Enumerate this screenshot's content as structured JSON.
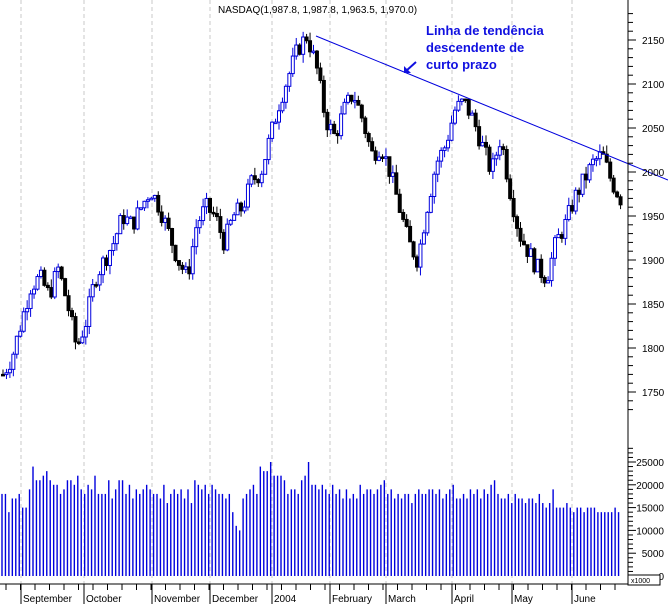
{
  "chart_data": [
    {
      "type": "candlestick",
      "title": "NASDAQ(1,987.8, 1,987.8, 1,963.5, 1,970.0)",
      "last_ohlc": {
        "open": 1987.8,
        "high": 1987.8,
        "low": 1963.5,
        "close": 1970.0
      },
      "xlabel": "",
      "ylabel": "",
      "ylim": [
        1720,
        2180
      ],
      "y_ticks": [
        1750,
        1800,
        1850,
        1900,
        1950,
        2000,
        2050,
        2100,
        2150
      ],
      "x_tick_labels": [
        "September",
        "October",
        "November",
        "December",
        "2004",
        "February",
        "March",
        "April",
        "May",
        "June"
      ],
      "grid": "vertical dashed at month starts",
      "up_color": "#0000dd",
      "down_color": "#000000",
      "trendline_color": "#0000dd",
      "trendline": {
        "from": {
          "label": "late Jan 2004",
          "value": 2155
        },
        "to": {
          "label": "mid June 2004",
          "value": 1995
        }
      },
      "annotation": "Linha de tendência descendente de curto prazo",
      "price_path_approx": [
        1770,
        1790,
        1830,
        1870,
        1880,
        1860,
        1890,
        1850,
        1800,
        1830,
        1880,
        1900,
        1920,
        1950,
        1940,
        1960,
        1980,
        1960,
        1930,
        1900,
        1880,
        1940,
        1960,
        1950,
        1920,
        1950,
        1960,
        1990,
        2000,
        2040,
        2080,
        2110,
        2140,
        2155,
        2120,
        2060,
        2040,
        2070,
        2090,
        2060,
        2020,
        2030,
        2000,
        1960,
        1920,
        1900,
        1960,
        2010,
        2030,
        2070,
        2080,
        2060,
        2030,
        2000,
        2040,
        1980,
        1930,
        1910,
        1890,
        1880,
        1920,
        1940,
        1970,
        1990,
        2010,
        2020,
        1990,
        1970
      ]
    },
    {
      "type": "bar",
      "title": "Volume",
      "ylabel": "x1000",
      "ylim": [
        0,
        28000
      ],
      "y_ticks": [
        0,
        5000,
        10000,
        15000,
        20000,
        25000
      ],
      "color": "#0000dd",
      "values_approx_thousands": [
        18,
        18,
        14,
        17,
        17,
        18,
        15,
        15,
        19,
        24,
        21,
        21,
        22,
        23,
        21,
        20,
        20,
        18,
        19,
        21,
        21,
        20,
        22,
        19,
        18,
        20,
        19,
        22,
        18,
        18,
        18,
        21,
        17,
        19,
        21,
        21,
        18,
        20,
        17,
        19,
        18,
        19,
        20,
        19,
        18,
        18,
        17,
        20,
        16,
        18,
        19,
        18,
        19,
        17,
        19,
        16,
        21,
        20,
        19,
        20,
        18,
        20,
        19,
        18,
        18,
        17,
        18,
        14,
        11,
        10,
        17,
        18,
        19,
        20,
        18,
        24,
        23,
        23,
        25,
        22,
        22,
        22,
        21,
        18,
        19,
        19,
        18,
        21,
        22,
        25,
        20,
        20,
        19,
        20,
        19,
        18,
        20,
        18,
        19,
        17,
        19,
        17,
        18,
        17,
        20,
        18,
        19,
        19,
        18,
        19,
        20,
        21,
        18,
        19,
        17,
        18,
        17,
        18,
        18,
        16,
        18,
        19,
        18,
        18,
        19,
        19,
        18,
        19,
        17,
        18,
        19,
        20,
        17,
        17,
        18,
        17,
        19,
        18,
        19,
        17,
        19,
        18,
        20,
        21,
        18,
        17,
        17,
        18,
        16,
        18,
        17,
        17,
        16,
        17,
        17,
        16,
        18,
        16,
        15,
        16,
        19,
        15,
        15,
        15,
        16,
        15,
        14,
        15,
        15,
        14,
        15,
        15,
        15,
        14,
        14,
        14,
        14,
        14,
        15,
        14
      ]
    }
  ],
  "axis": {
    "price_ticks": [
      "2150",
      "2100",
      "2050",
      "2000",
      "1950",
      "1900",
      "1850",
      "1800",
      "1750"
    ],
    "volume_ticks": [
      "25000",
      "20000",
      "15000",
      "10000",
      "5000",
      "0"
    ],
    "volume_multiplier": "x1000",
    "months": [
      "September",
      "October",
      "November",
      "December",
      "2004",
      "February",
      "March",
      "April",
      "May",
      "June"
    ]
  },
  "header": {
    "title": "NASDAQ(1,987.8, 1,987.8, 1,963.5, 1,970.0)"
  },
  "annotation": {
    "line1": "Linha de tendência",
    "line2": "descendente de",
    "line3": "curto prazo"
  }
}
